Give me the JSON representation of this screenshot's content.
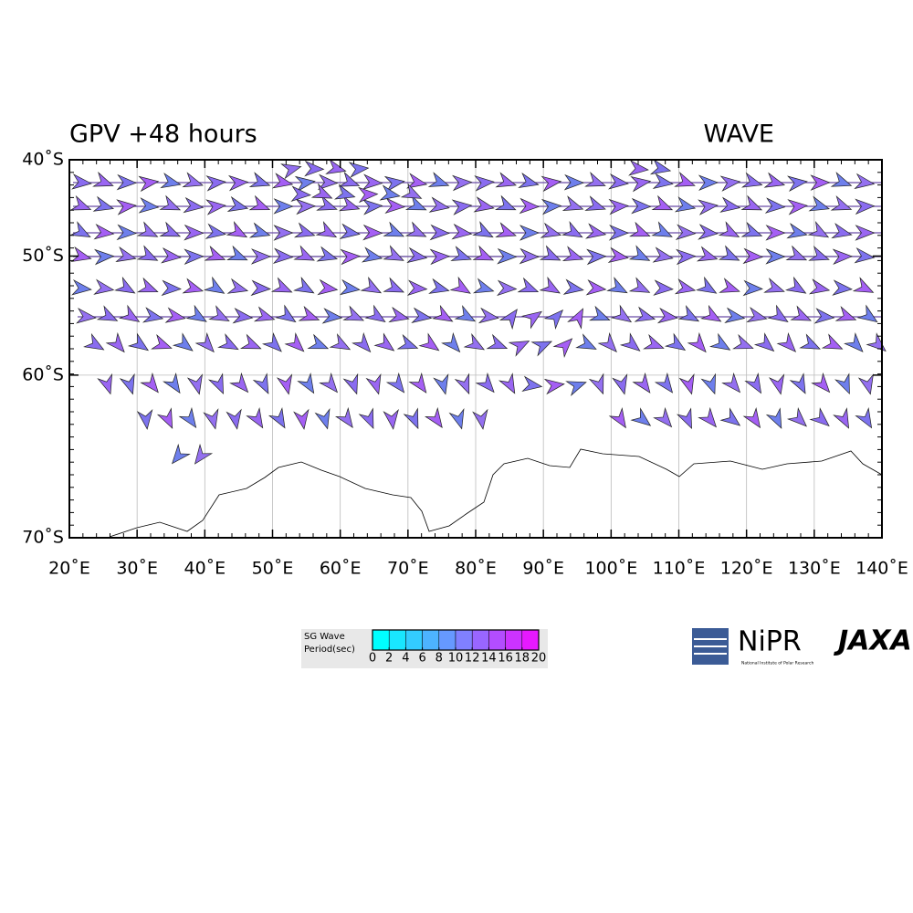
{
  "map": {
    "title": "GPV +48 hours",
    "product": "WAVE",
    "xlim": [
      20,
      140
    ],
    "ylim": [
      -70,
      -40
    ],
    "xticks": [
      {
        "value": 20,
        "label": "20˚E"
      },
      {
        "value": 30,
        "label": "30˚E"
      },
      {
        "value": 40,
        "label": "40˚E"
      },
      {
        "value": 50,
        "label": "50˚E"
      },
      {
        "value": 60,
        "label": "60˚E"
      },
      {
        "value": 70,
        "label": "70˚E"
      },
      {
        "value": 80,
        "label": "80˚E"
      },
      {
        "value": 90,
        "label": "90˚E"
      },
      {
        "value": 100,
        "label": "100˚E"
      },
      {
        "value": 110,
        "label": "110˚E"
      },
      {
        "value": 120,
        "label": "120˚E"
      },
      {
        "value": 130,
        "label": "130˚E"
      },
      {
        "value": 140,
        "label": "140˚E"
      }
    ],
    "yticks": [
      {
        "value": -40,
        "label": "40˚S"
      },
      {
        "value": -50,
        "label": "50˚S"
      },
      {
        "value": -60,
        "label": "60˚S"
      },
      {
        "value": -70,
        "label": "70˚S"
      }
    ],
    "colorbar": {
      "title_line1": "SG Wave",
      "title_line2": "Period(sec)",
      "ticks": [
        0,
        2,
        4,
        6,
        8,
        10,
        12,
        14,
        16,
        18,
        20
      ],
      "colors": [
        "#00ffff",
        "#19e6ff",
        "#33ccff",
        "#4db3ff",
        "#6699ff",
        "#8080ff",
        "#9966ff",
        "#b34dff",
        "#cc33ff",
        "#e619ff"
      ]
    },
    "logos": {
      "nipr": "NiPR",
      "nipr_sub": "National Institute of Polar Research",
      "jaxa": "JAXA"
    }
  }
}
